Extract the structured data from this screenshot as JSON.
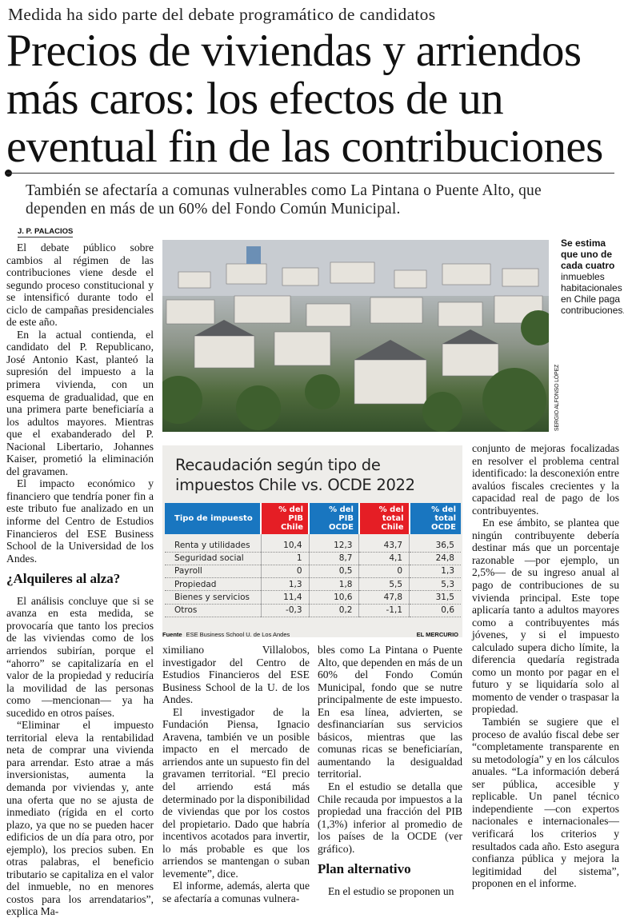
{
  "kicker": "Medida ha sido parte del debate programático de candidatos",
  "headline": "Precios de viviendas y arriendos más caros: los efectos de un eventual fin de las contribuciones",
  "deck": "También se afectaría a comunas vulnerables como La Pintana o Puente Alto, que dependen en más de un 60% del Fondo Común Municipal.",
  "byline": "J. P. PALACIOS",
  "photo": {
    "credit": "SERGIO ALFONSO LÓPEZ"
  },
  "caption": {
    "bold": "Se estima que uno de cada cuatro",
    "text": "inmuebles habitacionales en Chile paga contribuciones."
  },
  "columns": {
    "c1": {
      "p1": "El debate público sobre cambios al régimen de las contribuciones viene desde el segundo proceso constitucional y se intensificó durante todo el ciclo de campañas presidenciales de este año.",
      "p2": "En la actual contienda, el candidato del P. Republicano, José Antonio Kast, planteó la supresión del impuesto a la primera vivienda, con un esquema de gradualidad, que en una primera parte beneficiaría a los adultos mayores. Mientras que el exabanderado del P. Nacional Libertario, Johannes Kaiser, prometió la eliminación del gravamen.",
      "p3": "El impacto económico y financiero que tendría poner fin a este tributo fue analizado en un informe del Centro de Estudios Financieros del ESE Business School de la Universidad de los Andes.",
      "heading": "¿Alquileres al alza?",
      "p4": "El análisis concluye que si se avanza en esta medida, se provocaría que tanto los precios de las viviendas como de los arriendos subirían, porque el “ahorro” se capitalizaría en el valor de la propiedad y reduciría la movilidad de las personas como —mencionan— ya ha sucedido en otros países.",
      "p5": "“Eliminar el impuesto territorial eleva la rentabilidad neta de comprar una vivienda para arrendar. Esto atrae a más inversionistas, aumenta la demanda por viviendas y, ante una oferta que no se ajusta de inmediato (rígida en el corto plazo, ya que no se pueden hacer edificios de un día para otro, por ejemplo), los precios suben. En otras palabras, el beneficio tributario se capitaliza en el valor del inmueble, no en menores costos para los arrendatarios”, explica Ma-"
    },
    "c2": {
      "p1": "ximiliano Villalobos, investigador del Centro de Estudios Financieros del ESE Business School de la U. de los Andes.",
      "p2": "El investigador de la Fundación Piensa, Ignacio Aravena, también ve un posible impacto en el mercado de arriendos ante un supuesto fin del gravamen territorial. “El precio del arriendo está más determinado por la disponibilidad de viviendas que por los costos del propietario. Dado que habría incentivos acotados para invertir, lo más probable es que los arriendos se mantengan o suban levemente”, dice.",
      "p3": "El informe, además, alerta que se afectaría a comunas vulnera-"
    },
    "c3": {
      "p1": "bles como La Pintana o Puente Alto, que dependen en más de un 60% del Fondo Común Municipal, fondo que se nutre principalmente de este impuesto. En esa línea, advierten, se desfinanciarían sus servicios básicos, mientras que las comunas ricas se beneficiarían, aumentando la desigualdad territorial.",
      "p2": "En el estudio se detalla que Chile recauda por impuestos a la propiedad una fracción del PIB (1,3%) inferior al promedio de los países de la OCDE (ver gráfico).",
      "heading": "Plan alternativo",
      "p3": "En el estudio se proponen un"
    },
    "c4": {
      "p1": "conjunto de mejoras focalizadas en resolver el problema central identificado: la desconexión entre avalúos fiscales crecientes y la capacidad real de pago de los contribuyentes.",
      "p2": "En ese ámbito, se plantea que ningún contribuyente debería destinar más que un porcentaje razonable —por ejemplo, un 2,5%— de su ingreso anual al pago de contribuciones de su vivienda principal. Este tope aplicaría tanto a adultos mayores como a contribuyentes más jóvenes, y si el impuesto calculado supera dicho límite, la diferencia quedaría registrada como un monto por pagar en el futuro y se liquidaría solo al momento de vender o traspasar la propiedad.",
      "p3": "También se sugiere que el proceso de avalúo fiscal debe ser “completamente transparente en su metodología” y en los cálculos anuales. “La información deberá ser pública, accesible y replicable. Un panel técnico independiente —con expertos nacionales e internacionales— verificará los criterios y resultados cada año. Esto asegura confianza pública y mejora la legitimidad del sistema”, proponen en el informe."
    }
  },
  "table": {
    "title": "Recaudación según tipo de impuestos Chile vs. OCDE 2022",
    "headers": [
      "Tipo de impuesto",
      "% del PIB Chile",
      "% del PIB OCDE",
      "% del total Chile",
      "% del total OCDE"
    ],
    "header_colors": {
      "blue": "#1976c0",
      "red": "#e51e25"
    },
    "rows": [
      [
        "Renta y utilidades",
        "10,4",
        "12,3",
        "43,7",
        "36,5"
      ],
      [
        "Seguridad social",
        "1",
        "8,7",
        "4,1",
        "24,8"
      ],
      [
        "Payroll",
        "0",
        "0,5",
        "0",
        "1,3"
      ],
      [
        "Propiedad",
        "1,3",
        "1,8",
        "5,5",
        "5,3"
      ],
      [
        "Bienes y servicios",
        "11,4",
        "10,6",
        "47,8",
        "31,5"
      ],
      [
        "Otros",
        "-0,3",
        "0,2",
        "-1,1",
        "0,6"
      ]
    ],
    "source_label": "Fuente",
    "source": "ESE Business School U. de Los Andes",
    "publisher": "EL MERCURIO"
  }
}
